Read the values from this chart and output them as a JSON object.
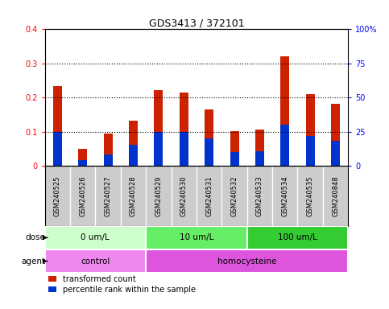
{
  "title": "GDS3413 / 372101",
  "samples": [
    "GSM240525",
    "GSM240526",
    "GSM240527",
    "GSM240528",
    "GSM240529",
    "GSM240530",
    "GSM240531",
    "GSM240532",
    "GSM240533",
    "GSM240534",
    "GSM240535",
    "GSM240848"
  ],
  "transformed_count": [
    0.235,
    0.05,
    0.095,
    0.133,
    0.223,
    0.215,
    0.165,
    0.103,
    0.108,
    0.32,
    0.21,
    0.182
  ],
  "percentile_rank": [
    0.1,
    0.018,
    0.033,
    0.063,
    0.1,
    0.1,
    0.08,
    0.04,
    0.043,
    0.12,
    0.088,
    0.073
  ],
  "bar_color_red": "#CC2200",
  "bar_color_blue": "#0033CC",
  "bar_width": 0.35,
  "ylim_left": [
    0,
    0.4
  ],
  "ylim_right": [
    0,
    100
  ],
  "yticks_left": [
    0,
    0.1,
    0.2,
    0.3,
    0.4
  ],
  "yticks_right": [
    0,
    25,
    50,
    75,
    100
  ],
  "ytick_labels_left": [
    "0",
    "0.1",
    "0.2",
    "0.3",
    "0.4"
  ],
  "ytick_labels_right": [
    "0",
    "25",
    "50",
    "75",
    "100%"
  ],
  "dose_groups": [
    {
      "label": "0 um/L",
      "start": 0,
      "end": 4,
      "color": "#CCFFCC"
    },
    {
      "label": "10 um/L",
      "start": 4,
      "end": 8,
      "color": "#66EE66"
    },
    {
      "label": "100 um/L",
      "start": 8,
      "end": 12,
      "color": "#33CC33"
    }
  ],
  "agent_groups": [
    {
      "label": "control",
      "start": 0,
      "end": 4,
      "color": "#EE88EE"
    },
    {
      "label": "homocysteine",
      "start": 4,
      "end": 12,
      "color": "#DD55DD"
    }
  ],
  "dose_label": "dose",
  "agent_label": "agent",
  "legend_red": "transformed count",
  "legend_blue": "percentile rank within the sample",
  "sample_bg_color": "#CCCCCC",
  "dotted_lines": [
    0.1,
    0.2,
    0.3
  ]
}
